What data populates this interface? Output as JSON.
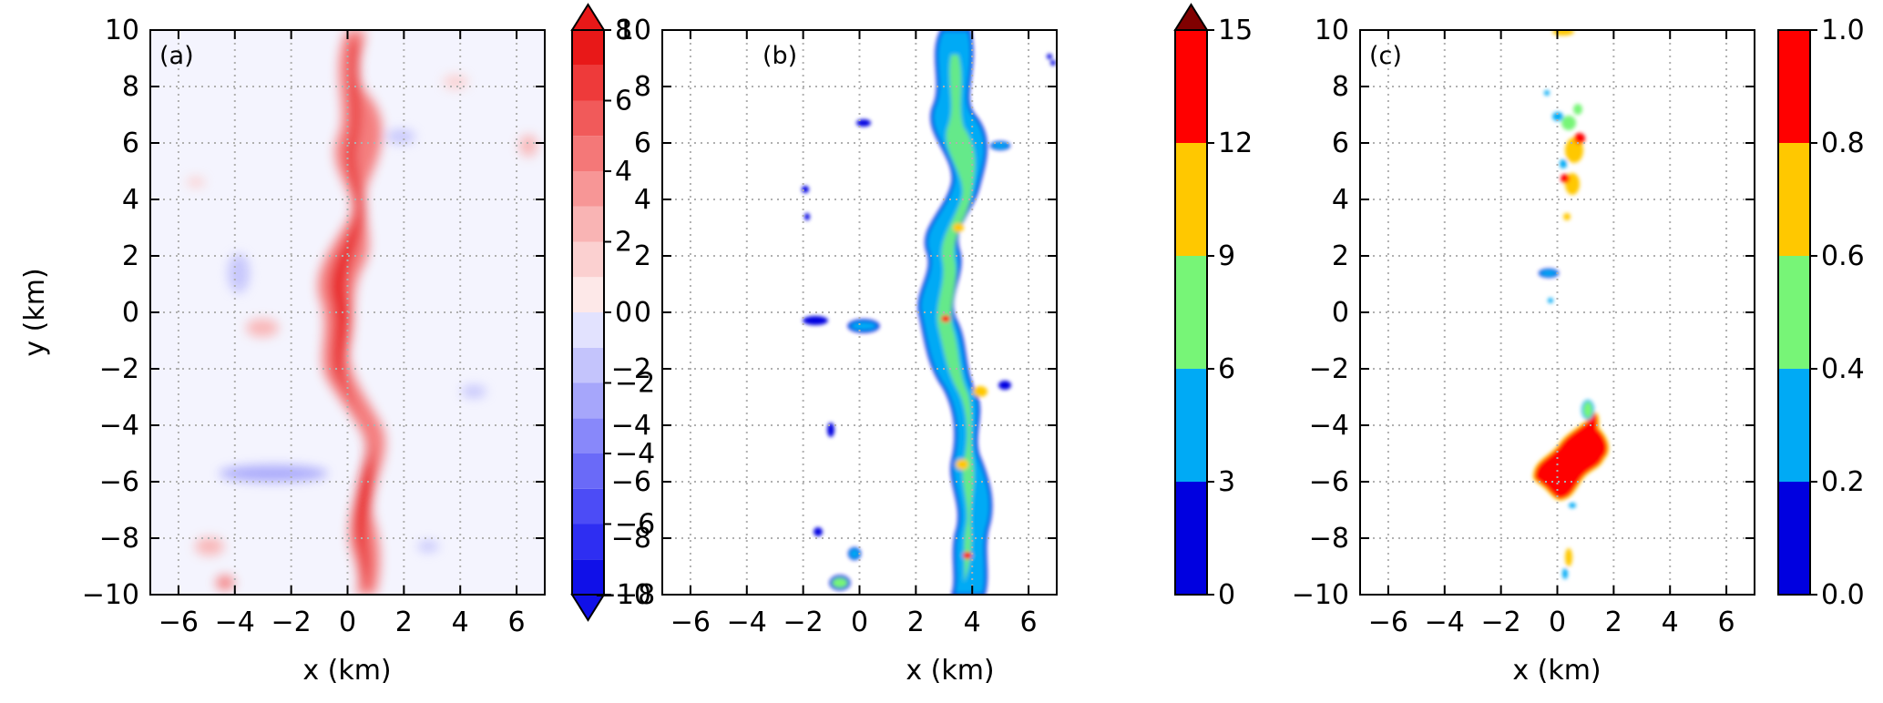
{
  "chart_data": [
    {
      "type": "heatmap",
      "panel_label": "(a)",
      "xlabel": "x (km)",
      "ylabel": "y (km)",
      "xlim": [
        -7,
        7
      ],
      "ylim": [
        -10,
        10
      ],
      "x_ticks": [
        -6,
        -4,
        -2,
        0,
        2,
        4,
        6
      ],
      "y_ticks": [
        -10,
        -8,
        -6,
        -4,
        -2,
        0,
        2,
        4,
        6,
        8,
        10
      ],
      "grid": true,
      "colorbar": {
        "levels": [
          -8,
          -7,
          -6,
          -5,
          -4,
          -3,
          -2,
          -1,
          0,
          1,
          2,
          3,
          4,
          5,
          6,
          7,
          8
        ],
        "tick_labels": [
          "−8",
          "−6",
          "−4",
          "−2",
          "0",
          "2",
          "4",
          "6",
          "8"
        ],
        "tick_values": [
          -8,
          -6,
          -4,
          -2,
          0,
          2,
          4,
          6,
          8
        ],
        "extend": "both",
        "colors": [
          "#1010e8",
          "#2e2ef2",
          "#4c4cf6",
          "#6a6af8",
          "#8888fa",
          "#a6a6fb",
          "#c4c4fc",
          "#e2e2fe",
          "#fde8e8",
          "#fbd0d0",
          "#f9b4b4",
          "#f79696",
          "#f47878",
          "#f15a5a",
          "#ee3a3a",
          "#e81818"
        ],
        "over_color": "#e81818",
        "under_color": "#1010e8"
      },
      "background_color": "#f4f4fe"
    },
    {
      "type": "heatmap",
      "panel_label": "(b)",
      "xlabel": "x (km)",
      "ylabel": "",
      "xlim": [
        -7,
        7
      ],
      "ylim": [
        -10,
        10
      ],
      "x_ticks": [
        -6,
        -4,
        -2,
        0,
        2,
        4,
        6
      ],
      "y_ticks": [
        -10,
        -8,
        -6,
        -4,
        -2,
        0,
        2,
        4,
        6,
        8,
        10
      ],
      "grid": true,
      "colorbar": {
        "levels": [
          0,
          3,
          6,
          9,
          12,
          15
        ],
        "tick_labels": [
          "0",
          "3",
          "6",
          "9",
          "12",
          "15"
        ],
        "tick_values": [
          0,
          3,
          6,
          9,
          12,
          15
        ],
        "extend": "max",
        "colors": [
          "#0000e0",
          "#00aaf5",
          "#77f577",
          "#ffc800",
          "#ff0000"
        ],
        "over_color": "#800000"
      }
    },
    {
      "type": "heatmap",
      "panel_label": "(c)",
      "xlabel": "x (km)",
      "ylabel": "",
      "xlim": [
        -7,
        7
      ],
      "ylim": [
        -10,
        10
      ],
      "x_ticks": [
        -6,
        -4,
        -2,
        0,
        2,
        4,
        6
      ],
      "y_ticks": [
        -10,
        -8,
        -6,
        -4,
        -2,
        0,
        2,
        4,
        6,
        8,
        10
      ],
      "grid": true,
      "colorbar": {
        "levels": [
          0.0,
          0.2,
          0.4,
          0.6,
          0.8,
          1.0
        ],
        "tick_labels": [
          "0.0",
          "0.2",
          "0.4",
          "0.6",
          "0.8",
          "1.0"
        ],
        "tick_values": [
          0.0,
          0.2,
          0.4,
          0.6,
          0.8,
          1.0
        ],
        "extend": "neither",
        "colors": [
          "#0000e0",
          "#00aaf5",
          "#77f577",
          "#ffc800",
          "#ff0000"
        ]
      }
    }
  ],
  "tick_labels": {
    "x": [
      "−6",
      "−4",
      "−2",
      "0",
      "2",
      "4",
      "6"
    ],
    "y": [
      "−10",
      "−8",
      "−6",
      "−4",
      "−2",
      "0",
      "2",
      "4",
      "6",
      "8",
      "10"
    ]
  }
}
